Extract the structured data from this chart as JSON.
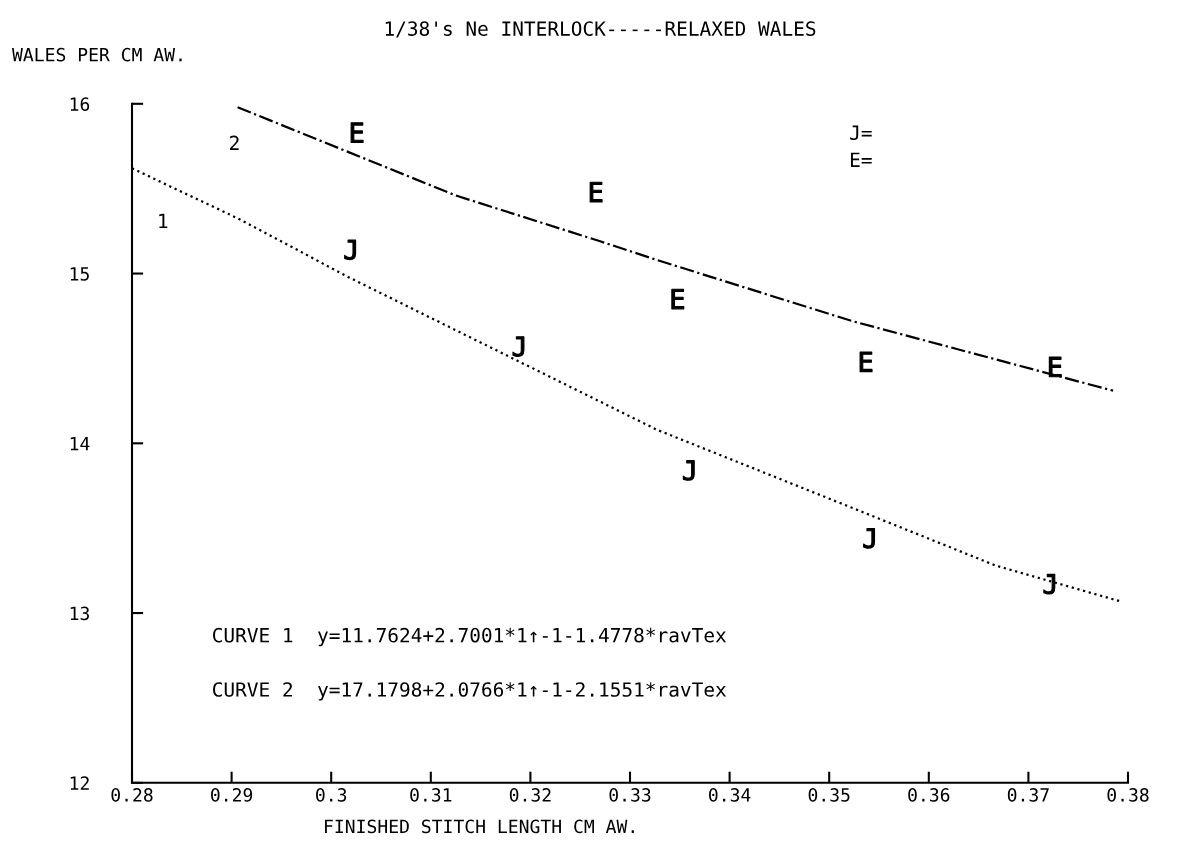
{
  "chart_data": {
    "type": "scatter",
    "title": "1/38's Ne INTERLOCK-----RELAXED WALES",
    "xlabel": "FINISHED STITCH LENGTH CM AW.",
    "ylabel": "WALES PER CM AW.",
    "xlim": [
      0.28,
      0.38
    ],
    "xticks": [
      {
        "value": 0.28,
        "label": "0.28"
      },
      {
        "value": 0.29,
        "label": "0.29"
      },
      {
        "value": 0.3,
        "label": "0.3"
      },
      {
        "value": 0.31,
        "label": "0.31"
      },
      {
        "value": 0.32,
        "label": "0.32"
      },
      {
        "value": 0.33,
        "label": "0.33"
      },
      {
        "value": 0.34,
        "label": "0.34"
      },
      {
        "value": 0.35,
        "label": "0.35"
      },
      {
        "value": 0.36,
        "label": "0.36"
      },
      {
        "value": 0.37,
        "label": "0.37"
      },
      {
        "value": 0.38,
        "label": "0.38"
      }
    ],
    "ylim": [
      12,
      16
    ],
    "yticks": [
      12,
      13,
      14,
      15,
      16
    ],
    "grid": false,
    "series": [
      {
        "color": "#000000",
        "x": [
          0.3019,
          0.3188,
          0.3359,
          0.354,
          0.3721
        ],
        "values": [
          15.14,
          14.57,
          13.84,
          13.44,
          13.17
        ]
      },
      {
        "color": "#000000",
        "x": [
          0.3026,
          0.3266,
          0.3348,
          0.3537,
          0.3727
        ],
        "values": [
          15.83,
          15.48,
          14.85,
          14.48,
          14.45
        ]
      },
      {
        "type": "line",
        "line_style": "dotted",
        "color": "#000000",
        "x": [
          0.28,
          0.2908,
          0.3017,
          0.3327,
          0.3523,
          0.3667,
          0.3792
        ],
        "values": [
          15.62,
          15.32,
          14.98,
          14.08,
          13.62,
          13.28,
          13.07
        ]
      },
      {
        "type": "line",
        "line_style": "dashdot",
        "color": "#000000",
        "x": [
          0.2906,
          0.3125,
          0.327,
          0.3327,
          0.3523,
          0.3785
        ],
        "values": [
          15.98,
          15.46,
          15.19,
          15.08,
          14.72,
          14.31
        ]
      }
    ],
    "annotations": [
      "1",
      "2",
      "J=",
      "E=",
      "CURVE 1  y=11.7624+2.7001*1↑-1-1.4778*ravTex",
      "CURVE 2  y=17.1798+2.0766*1↑-1-2.1551*ravTex"
    ]
  }
}
